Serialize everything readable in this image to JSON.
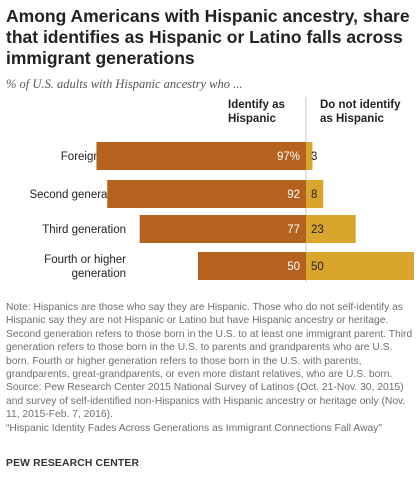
{
  "title": "Among Americans with Hispanic ancestry, share that identifies as Hispanic or Latino falls across immigrant generations",
  "subtitle": "% of U.S. adults with Hispanic ancestry who ...",
  "colors": {
    "identify": "#b5621e",
    "not_identify": "#d9a52d"
  },
  "chart_data": {
    "type": "bar",
    "orientation": "horizontal-diverging",
    "categories": [
      "Foreign born",
      "Second generation",
      "Third generation",
      "Fourth or higher generation"
    ],
    "series": [
      {
        "name": "Identify as Hispanic",
        "values": [
          97,
          92,
          77,
          50
        ],
        "labels": [
          "97%",
          "92",
          "77",
          "50"
        ]
      },
      {
        "name": "Do not identify as Hispanic",
        "values": [
          3,
          8,
          23,
          50
        ],
        "labels": [
          "3",
          "8",
          "23",
          "50"
        ]
      }
    ],
    "xlim": [
      0,
      100
    ]
  },
  "notes": [
    "Note: Hispanics are those who say they are Hispanic. Those who do not self-identify as Hispanic say they are not Hispanic or Latino but have Hispanic ancestry or heritage. Second generation refers to those born in the U.S. to at least one immigrant parent. Third generation refers to those born in the U.S. to parents and grandparents who are U.S. born. Fourth or higher generation refers to those born in the U.S. with parents, grandparents, great-grandparents, or even more distant relatives, who are U.S. born.",
    "Source: Pew Research Center 2015 National Survey of Latinos (Oct. 21-Nov. 30, 2015) and survey of self-identified non-Hispanics with Hispanic ancestry or heritage only (Nov. 11, 2015-Feb. 7, 2016).",
    "“Hispanic Identity Fades Across Generations as Immigrant Connections Fall Away”"
  ],
  "source_label": "PEW RESEARCH CENTER"
}
